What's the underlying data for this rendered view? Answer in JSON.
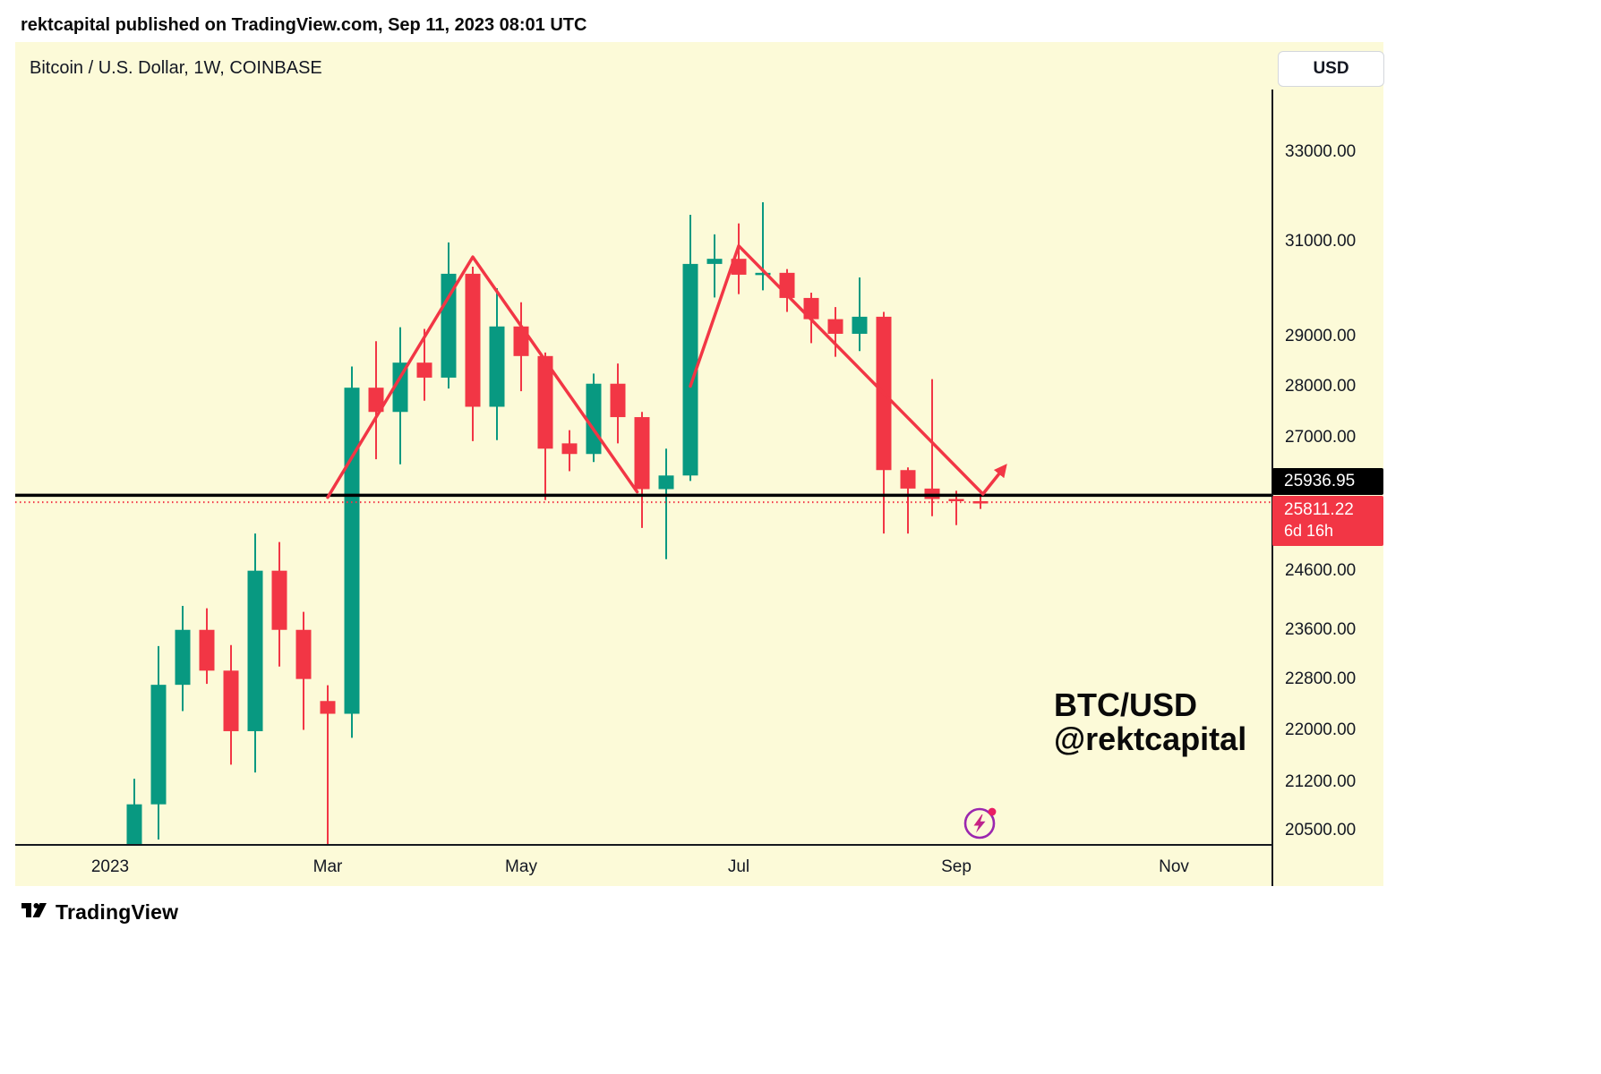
{
  "header": {
    "published_line": "rektcapital published on TradingView.com, Sep 11, 2023 08:01 UTC"
  },
  "chart": {
    "symbol_title": "Bitcoin / U.S. Dollar, 1W, COINBASE",
    "currency_button": "USD",
    "watermark_line1": "BTC/USD",
    "watermark_line2": "@rektcapital",
    "black_line_price_label": "25936.95",
    "current_price_label": "25811.22",
    "countdown": "6d 16h",
    "colors": {
      "background": "#FCFAD8",
      "bull": "#089981",
      "bear": "#F23645",
      "trendline": "#F23645",
      "level_line": "#000000",
      "current_price_line": "#F23645"
    }
  },
  "chart_data": {
    "type": "candlestick",
    "title": "Bitcoin / U.S. Dollar, 1W, COINBASE",
    "symbol": "BTC/USD",
    "timeframe": "1W",
    "exchange": "COINBASE",
    "scale": "logarithmic",
    "grid": "off",
    "y_axis_ticks": [
      {
        "label": "33000.00",
        "price": 33000
      },
      {
        "label": "31000.00",
        "price": 31000
      },
      {
        "label": "29000.00",
        "price": 29000
      },
      {
        "label": "28000.00",
        "price": 28000
      },
      {
        "label": "27000.00",
        "price": 27000
      },
      {
        "label": "24600.00",
        "price": 24600
      },
      {
        "label": "23600.00",
        "price": 23600
      },
      {
        "label": "22800.00",
        "price": 22800
      },
      {
        "label": "22000.00",
        "price": 22000
      },
      {
        "label": "21200.00",
        "price": 21200
      },
      {
        "label": "20500.00",
        "price": 20500
      }
    ],
    "x_axis_ticks": [
      {
        "label": "2023",
        "week": -1
      },
      {
        "label": "Mar",
        "week": 8
      },
      {
        "label": "May",
        "week": 16
      },
      {
        "label": "Jul",
        "week": 25
      },
      {
        "label": "Sep",
        "week": 34
      },
      {
        "label": "Nov",
        "week": 43
      }
    ],
    "horizontal_level": 25936.95,
    "current_price": 25811.22,
    "candles_ohlc": [
      [
        16943,
        21258,
        16911,
        20880
      ],
      [
        20880,
        23333,
        20371,
        22707
      ],
      [
        22707,
        24000,
        22292,
        23600
      ],
      [
        23600,
        23960,
        22722,
        22934
      ],
      [
        22934,
        23350,
        21470,
        21980
      ],
      [
        21980,
        25250,
        21351,
        24600
      ],
      [
        24600,
        25100,
        23000,
        23600
      ],
      [
        23600,
        23900,
        22000,
        22800
      ],
      [
        22450,
        22700,
        19549,
        22250
      ],
      [
        22250,
        28390,
        21878,
        27972
      ],
      [
        27972,
        28900,
        26601,
        27500
      ],
      [
        27500,
        29184,
        26508,
        28468
      ],
      [
        28468,
        29150,
        27717,
        28170
      ],
      [
        28170,
        30975,
        27955,
        30300
      ],
      [
        30300,
        30450,
        26942,
        27600
      ],
      [
        27600,
        29995,
        26962,
        29200
      ],
      [
        29200,
        29700,
        27903,
        28600
      ],
      [
        28600,
        28670,
        25850,
        26800
      ],
      [
        26900,
        27150,
        26380,
        26700
      ],
      [
        26700,
        28250,
        26550,
        28050
      ],
      [
        28050,
        28450,
        26900,
        27400
      ],
      [
        27400,
        27500,
        25350,
        26050
      ],
      [
        26050,
        26800,
        24800,
        26300
      ],
      [
        26300,
        31580,
        26200,
        30510
      ],
      [
        30510,
        31150,
        29800,
        30620
      ],
      [
        30620,
        31390,
        29870,
        30280
      ],
      [
        30280,
        31860,
        29950,
        30320
      ],
      [
        30320,
        30400,
        29500,
        29790
      ],
      [
        29790,
        29900,
        28860,
        29350
      ],
      [
        29350,
        29600,
        28585,
        29050
      ],
      [
        29050,
        30222,
        28700,
        29400
      ],
      [
        29400,
        29500,
        25250,
        26400
      ],
      [
        26400,
        26450,
        25250,
        26060
      ],
      [
        26060,
        28140,
        25560,
        25870
      ],
      [
        25870,
        26020,
        25400,
        25830
      ],
      [
        25830,
        25940,
        25690,
        25811
      ]
    ],
    "trendlines": [
      {
        "points": [
          [
            8.0,
            25900
          ],
          [
            14.0,
            30660
          ],
          [
            20.8,
            26000
          ]
        ],
        "arrow_end": false
      },
      {
        "points": [
          [
            23.0,
            28000
          ],
          [
            25.0,
            30900
          ],
          [
            35.1,
            25960
          ],
          [
            36.0,
            26460
          ]
        ],
        "arrow_end": true
      }
    ]
  },
  "footer": {
    "brand": "TradingView"
  }
}
